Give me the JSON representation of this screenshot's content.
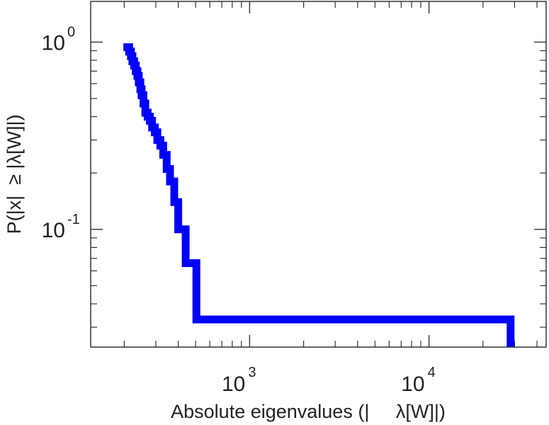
{
  "chart_data": {
    "type": "line",
    "title": "",
    "xlabel": "Absolute eigenvalues (|     λ[W]|)",
    "ylabel": "P(|x|  ≥ |λ[W]|)",
    "x_scale": "log",
    "y_scale": "log",
    "xlim": [
      130,
      45000
    ],
    "ylim": [
      0.0235,
      1.65
    ],
    "grid": false,
    "line_color": "#0000ff",
    "x_ticks": [
      {
        "value": 1000,
        "base": "10",
        "exp": "3"
      },
      {
        "value": 10000,
        "base": "10",
        "exp": "4"
      }
    ],
    "y_ticks": [
      {
        "value": 1,
        "base": "10",
        "exp": "0"
      },
      {
        "value": 0.1,
        "base": "10",
        "exp": "-1"
      }
    ],
    "x_minor_ticks": [
      200,
      300,
      400,
      500,
      600,
      700,
      800,
      900,
      2000,
      3000,
      4000,
      5000,
      6000,
      7000,
      8000,
      9000,
      20000,
      30000,
      40000
    ],
    "y_minor_ticks": [
      0.03,
      0.04,
      0.05,
      0.06,
      0.07,
      0.08,
      0.09,
      0.2,
      0.3,
      0.4,
      0.5,
      0.6,
      0.7,
      0.8,
      0.9
    ],
    "series": [
      {
        "x": [
          208,
          213,
          218,
          222,
          227,
          232,
          237,
          241,
          246,
          250,
          256,
          262,
          270,
          278,
          286,
          296,
          306,
          318,
          330,
          345,
          360,
          380,
          400,
          440,
          505,
          28500,
          28500
        ],
        "y": [
          0.94,
          0.89,
          0.84,
          0.79,
          0.75,
          0.7,
          0.66,
          0.61,
          0.56,
          0.52,
          0.47,
          0.42,
          0.4,
          0.38,
          0.35,
          0.33,
          0.3,
          0.28,
          0.25,
          0.21,
          0.18,
          0.14,
          0.1,
          0.066,
          0.033,
          0.033,
          0.021
        ]
      }
    ]
  }
}
